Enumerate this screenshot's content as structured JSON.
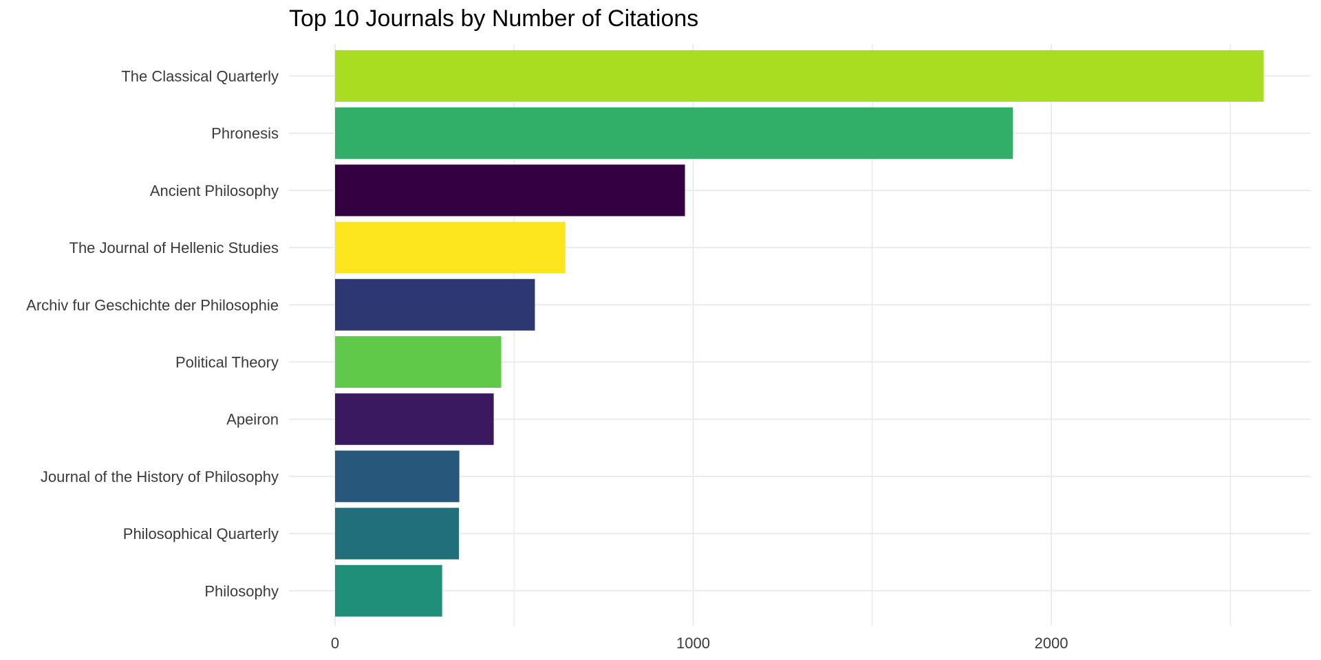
{
  "chart_data": {
    "type": "bar",
    "orientation": "horizontal",
    "title": "Top 10 Journals by Number of Citations",
    "xlabel": "",
    "ylabel": "",
    "xlim": [
      0,
      2700
    ],
    "xticks": [
      0,
      1000,
      2000
    ],
    "xtick_labels": [
      "0",
      "1000",
      "2000"
    ],
    "grid": true,
    "legend": "none",
    "categories": [
      "The Classical Quarterly",
      "Phronesis",
      "Ancient Philosophy",
      "The Journal of Hellenic Studies",
      "Archiv fur Geschichte der Philosophie",
      "Political Theory",
      "Apeiron",
      "Journal of the History of Philosophy",
      "Philosophical Quarterly",
      "Philosophy"
    ],
    "values": [
      2593,
      1893,
      977,
      643,
      558,
      464,
      443,
      347,
      346,
      299
    ],
    "colors": [
      "#a8dd22",
      "#31ae67",
      "#350042",
      "#fde51d",
      "#2d3873",
      "#5fc94a",
      "#3b1960",
      "#27587c",
      "#206f7a",
      "#1f8f77"
    ]
  }
}
